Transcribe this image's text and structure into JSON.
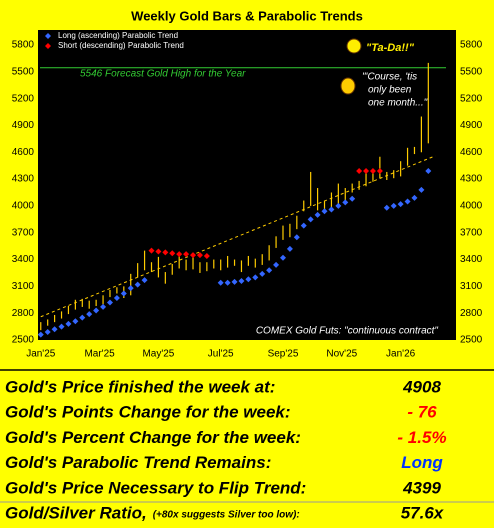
{
  "chart_data": {
    "type": "bar",
    "title": "Weekly Gold Bars & Parabolic Trends",
    "x": [
      0,
      1,
      2,
      3,
      4,
      5,
      6,
      7,
      8,
      9,
      10,
      11,
      12,
      13,
      14,
      15,
      16,
      17,
      18,
      19,
      20,
      21,
      22,
      23,
      24,
      25,
      26,
      27,
      28,
      29,
      30,
      31,
      32,
      33,
      34,
      35,
      36,
      37,
      38,
      39,
      40,
      41,
      42,
      43,
      44,
      45,
      46,
      47,
      48,
      49,
      50,
      51,
      52,
      53,
      54,
      55,
      56
    ],
    "xlim": [
      -0.4,
      60
    ],
    "ylim": [
      2500,
      5800
    ],
    "xticks": [
      {
        "value": 0,
        "label": "Jan'25"
      },
      {
        "value": 8.5,
        "label": "Mar'25"
      },
      {
        "value": 17,
        "label": "May'25"
      },
      {
        "value": 26,
        "label": "Jul'25"
      },
      {
        "value": 35,
        "label": "Sep'25"
      },
      {
        "value": 43.5,
        "label": "Nov'25"
      },
      {
        "value": 52,
        "label": "Jan'26"
      }
    ],
    "yticks": [
      2500,
      2800,
      3100,
      3400,
      3700,
      4000,
      4300,
      4600,
      4900,
      5200,
      5500,
      5800
    ],
    "grid": false,
    "bar_color": "#ffcc00",
    "bars": {
      "low": [
        2610,
        2660,
        2700,
        2740,
        2790,
        2840,
        2870,
        2850,
        2880,
        2900,
        2980,
        3020,
        2970,
        3000,
        3200,
        3280,
        3260,
        3200,
        3130,
        3230,
        3300,
        3280,
        3290,
        3250,
        3270,
        3300,
        3280,
        3310,
        3330,
        3260,
        3330,
        3310,
        3340,
        3390,
        3530,
        3620,
        3650,
        3740,
        3940,
        4000,
        3950,
        3930,
        3970,
        3980,
        4040,
        4150,
        4180,
        4220,
        4270,
        4310,
        4290,
        4310,
        4330,
        4450,
        4580,
        4600,
        4700
      ],
      "high": [
        2700,
        2730,
        2780,
        2820,
        2880,
        2950,
        2960,
        2940,
        2950,
        3000,
        3060,
        3090,
        3100,
        3240,
        3360,
        3500,
        3370,
        3430,
        3260,
        3350,
        3440,
        3400,
        3430,
        3370,
        3370,
        3400,
        3400,
        3440,
        3400,
        3390,
        3440,
        3410,
        3460,
        3560,
        3660,
        3780,
        3800,
        3890,
        4060,
        4380,
        4200,
        4060,
        4150,
        4250,
        4200,
        4250,
        4280,
        4400,
        4380,
        4550,
        4380,
        4400,
        4500,
        4650,
        4660,
        5000,
        5600
      ]
    },
    "series": [
      {
        "name": "Long (ascending) Parabolic Trend",
        "color": "#3366ff",
        "values": [
          2560,
          2590,
          2620,
          2650,
          2680,
          2710,
          2750,
          2790,
          2830,
          2870,
          2920,
          2970,
          3020,
          3080,
          3120,
          3170,
          null,
          null,
          null,
          null,
          null,
          null,
          null,
          null,
          null,
          null,
          3140,
          3140,
          3150,
          3160,
          3180,
          3200,
          3240,
          3280,
          3340,
          3420,
          3520,
          3650,
          3780,
          3850,
          3900,
          3940,
          3960,
          4000,
          4040,
          4080,
          null,
          null,
          null,
          null,
          3980,
          4000,
          4020,
          4050,
          4090,
          4180,
          4390
        ]
      },
      {
        "name": "Short (descending) Parabolic Trend",
        "color": "#ff0000",
        "values": [
          null,
          null,
          null,
          null,
          null,
          null,
          null,
          null,
          null,
          null,
          null,
          null,
          null,
          null,
          null,
          null,
          3500,
          3490,
          3480,
          3470,
          3460,
          3460,
          3450,
          3450,
          3440,
          null,
          null,
          null,
          null,
          null,
          null,
          null,
          null,
          null,
          null,
          null,
          null,
          null,
          null,
          null,
          null,
          null,
          null,
          null,
          null,
          null,
          4390,
          4390,
          4390,
          4390,
          null,
          null,
          null,
          null,
          null,
          null,
          null
        ]
      }
    ],
    "trend_line": {
      "x": [
        0,
        57
      ],
      "values": [
        2760,
        4560
      ],
      "color": "#ffcc00"
    },
    "forecast": {
      "value": 5546,
      "label": "5546 Forecast Gold High for the Year",
      "color": "#33cc33"
    },
    "annotations": {
      "exclaim": "\"Ta-Da!!\"",
      "comment": [
        "\"'Course, 'tis",
        "only been",
        "one month...\""
      ],
      "source": "COMEX Gold Futs: \"continuous contract\""
    }
  },
  "table": {
    "rows": [
      {
        "label": "Gold's Price finished the week at:",
        "value": "4908",
        "color": "#000000"
      },
      {
        "label": "Gold's Points Change for the week:",
        "value": "- 76",
        "color": "#ff0000"
      },
      {
        "label": "Gold's Percent Change for the week:",
        "value": "- 1.5%",
        "color": "#ff0000"
      },
      {
        "label": "Gold's Parabolic Trend Remains:",
        "value": "Long",
        "color": "#0033ff"
      },
      {
        "label": "Gold's Price Necessary to Flip Trend:",
        "value": "4399",
        "color": "#000000"
      },
      {
        "label": "Gold/Silver Ratio,",
        "note": "(+80x suggests Silver too low):",
        "value": "57.6x",
        "color": "#000000"
      }
    ]
  }
}
